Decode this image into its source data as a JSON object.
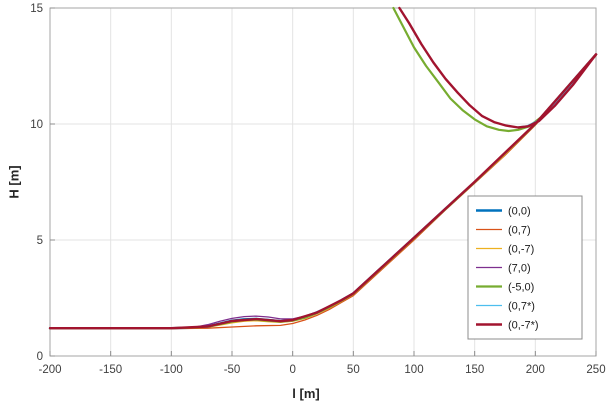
{
  "figure": {
    "background": "#ffffff",
    "grid_color": "#e3e3e3",
    "axis_color": "#a6a6a6",
    "tick_color": "#8c8c8c"
  },
  "chart_data": {
    "type": "line",
    "title": "",
    "xlabel": "l [m]",
    "ylabel": "H [m]",
    "xlim": [
      -200,
      250
    ],
    "ylim": [
      0,
      15
    ],
    "xticks": [
      -200,
      -150,
      -100,
      -50,
      0,
      50,
      100,
      150,
      200,
      250
    ],
    "yticks": [
      0,
      5,
      10,
      15
    ],
    "grid": true,
    "legend_position": "right-center",
    "series": [
      {
        "name": "(0,0)",
        "color": "#0072BD",
        "width": 2.4,
        "segments": [
          [
            [
              -200,
              1.2
            ],
            [
              -150,
              1.2
            ],
            [
              -100,
              1.2
            ],
            [
              -80,
              1.22
            ],
            [
              -70,
              1.28
            ],
            [
              -60,
              1.4
            ],
            [
              -50,
              1.52
            ],
            [
              -40,
              1.58
            ],
            [
              -30,
              1.6
            ],
            [
              -20,
              1.55
            ],
            [
              -10,
              1.5
            ],
            [
              0,
              1.55
            ],
            [
              10,
              1.68
            ],
            [
              20,
              1.88
            ],
            [
              30,
              2.12
            ],
            [
              40,
              2.4
            ],
            [
              50,
              2.7
            ],
            [
              75,
              3.9
            ],
            [
              100,
              5.1
            ],
            [
              125,
              6.3
            ],
            [
              150,
              7.5
            ],
            [
              175,
              8.7
            ],
            [
              200,
              10.0
            ],
            [
              225,
              11.5
            ],
            [
              250,
              13.0
            ]
          ]
        ]
      },
      {
        "name": "(0,7)",
        "color": "#D95319",
        "width": 1.3,
        "segments": [
          [
            [
              -200,
              1.18
            ],
            [
              -100,
              1.18
            ],
            [
              -70,
              1.2
            ],
            [
              -50,
              1.25
            ],
            [
              -30,
              1.3
            ],
            [
              -10,
              1.32
            ],
            [
              0,
              1.4
            ],
            [
              10,
              1.55
            ],
            [
              20,
              1.75
            ],
            [
              30,
              2.0
            ],
            [
              40,
              2.3
            ],
            [
              50,
              2.6
            ],
            [
              75,
              3.8
            ],
            [
              100,
              5.0
            ],
            [
              125,
              6.25
            ],
            [
              150,
              7.45
            ],
            [
              175,
              8.65
            ],
            [
              200,
              9.95
            ],
            [
              225,
              11.45
            ],
            [
              250,
              12.95
            ]
          ]
        ]
      },
      {
        "name": "(0,-7)",
        "color": "#EDB120",
        "width": 1.3,
        "segments": [
          [
            [
              -200,
              1.19
            ],
            [
              -100,
              1.19
            ],
            [
              -70,
              1.24
            ],
            [
              -60,
              1.33
            ],
            [
              -50,
              1.43
            ],
            [
              -40,
              1.5
            ],
            [
              -30,
              1.52
            ],
            [
              -20,
              1.48
            ],
            [
              -10,
              1.45
            ],
            [
              0,
              1.5
            ],
            [
              10,
              1.62
            ],
            [
              20,
              1.82
            ],
            [
              30,
              2.06
            ],
            [
              40,
              2.35
            ],
            [
              50,
              2.65
            ],
            [
              75,
              3.85
            ],
            [
              100,
              5.05
            ],
            [
              125,
              6.28
            ],
            [
              150,
              7.48
            ],
            [
              175,
              8.68
            ],
            [
              200,
              9.98
            ],
            [
              225,
              11.48
            ],
            [
              250,
              12.98
            ]
          ]
        ]
      },
      {
        "name": "(7,0)",
        "color": "#7E2F8E",
        "width": 1.3,
        "segments": [
          [
            [
              -200,
              1.21
            ],
            [
              -100,
              1.21
            ],
            [
              -80,
              1.25
            ],
            [
              -70,
              1.35
            ],
            [
              -60,
              1.5
            ],
            [
              -50,
              1.62
            ],
            [
              -40,
              1.7
            ],
            [
              -30,
              1.72
            ],
            [
              -20,
              1.68
            ],
            [
              -10,
              1.6
            ],
            [
              0,
              1.6
            ],
            [
              10,
              1.72
            ],
            [
              20,
              1.9
            ],
            [
              30,
              2.15
            ],
            [
              40,
              2.42
            ],
            [
              50,
              2.72
            ],
            [
              75,
              3.92
            ],
            [
              100,
              5.12
            ],
            [
              125,
              6.32
            ],
            [
              150,
              7.52
            ],
            [
              175,
              8.72
            ],
            [
              200,
              10.02
            ],
            [
              225,
              11.52
            ],
            [
              250,
              13.02
            ]
          ]
        ]
      },
      {
        "name": "(-5,0)",
        "color": "#77AC30",
        "width": 2.2,
        "segments": [
          [
            [
              -200,
              1.2
            ],
            [
              -100,
              1.2
            ],
            [
              -70,
              1.26
            ],
            [
              -60,
              1.37
            ],
            [
              -50,
              1.48
            ],
            [
              -40,
              1.55
            ],
            [
              -30,
              1.57
            ],
            [
              -20,
              1.52
            ],
            [
              -10,
              1.48
            ],
            [
              0,
              1.53
            ],
            [
              10,
              1.65
            ],
            [
              20,
              1.85
            ],
            [
              30,
              2.1
            ],
            [
              40,
              2.38
            ],
            [
              50,
              2.68
            ],
            [
              100,
              5.08
            ],
            [
              150,
              7.49
            ],
            [
              200,
              9.99
            ],
            [
              250,
              12.99
            ]
          ],
          [
            [
              83,
              15
            ],
            [
              90,
              14.3
            ],
            [
              100,
              13.3
            ],
            [
              110,
              12.5
            ],
            [
              120,
              11.8
            ],
            [
              130,
              11.1
            ],
            [
              140,
              10.6
            ],
            [
              150,
              10.2
            ],
            [
              160,
              9.9
            ],
            [
              170,
              9.75
            ],
            [
              178,
              9.7
            ],
            [
              186,
              9.75
            ],
            [
              195,
              9.9
            ],
            [
              205,
              10.3
            ],
            [
              220,
              11.2
            ],
            [
              235,
              12.1
            ],
            [
              250,
              13.0
            ]
          ]
        ]
      },
      {
        "name": "(0,7*)",
        "color": "#4DBEEE",
        "width": 1.3,
        "segments": [
          [
            [
              -200,
              1.2
            ],
            [
              -100,
              1.2
            ],
            [
              -70,
              1.25
            ],
            [
              -50,
              1.5
            ],
            [
              -30,
              1.58
            ],
            [
              -10,
              1.49
            ],
            [
              0,
              1.54
            ],
            [
              20,
              1.86
            ],
            [
              40,
              2.39
            ],
            [
              50,
              2.69
            ],
            [
              100,
              5.09
            ],
            [
              150,
              7.5
            ],
            [
              200,
              10.0
            ],
            [
              250,
              13.0
            ]
          ],
          [
            [
              88,
              15
            ],
            [
              95,
              14.4
            ],
            [
              105,
              13.5
            ],
            [
              115,
              12.7
            ],
            [
              125,
              12.0
            ],
            [
              135,
              11.4
            ],
            [
              145,
              10.85
            ],
            [
              155,
              10.4
            ],
            [
              165,
              10.1
            ],
            [
              175,
              9.95
            ],
            [
              185,
              9.87
            ],
            [
              193,
              9.92
            ],
            [
              202,
              10.15
            ],
            [
              215,
              10.8
            ],
            [
              230,
              11.7
            ],
            [
              250,
              13.0
            ]
          ]
        ]
      },
      {
        "name": "(0,-7*)",
        "color": "#A2142F",
        "width": 2.4,
        "segments": [
          [
            [
              -200,
              1.2
            ],
            [
              -100,
              1.2
            ],
            [
              -70,
              1.27
            ],
            [
              -50,
              1.51
            ],
            [
              -30,
              1.59
            ],
            [
              -10,
              1.5
            ],
            [
              0,
              1.55
            ],
            [
              20,
              1.87
            ],
            [
              40,
              2.4
            ],
            [
              50,
              2.7
            ],
            [
              100,
              5.1
            ],
            [
              150,
              7.51
            ],
            [
              200,
              10.01
            ],
            [
              250,
              13.0
            ]
          ],
          [
            [
              88,
              15
            ],
            [
              96,
              14.35
            ],
            [
              106,
              13.45
            ],
            [
              116,
              12.65
            ],
            [
              126,
              11.95
            ],
            [
              136,
              11.35
            ],
            [
              146,
              10.8
            ],
            [
              156,
              10.35
            ],
            [
              166,
              10.08
            ],
            [
              176,
              9.93
            ],
            [
              186,
              9.85
            ],
            [
              194,
              9.9
            ],
            [
              203,
              10.13
            ],
            [
              216,
              10.78
            ],
            [
              231,
              11.68
            ],
            [
              250,
              13.0
            ]
          ]
        ]
      }
    ]
  }
}
